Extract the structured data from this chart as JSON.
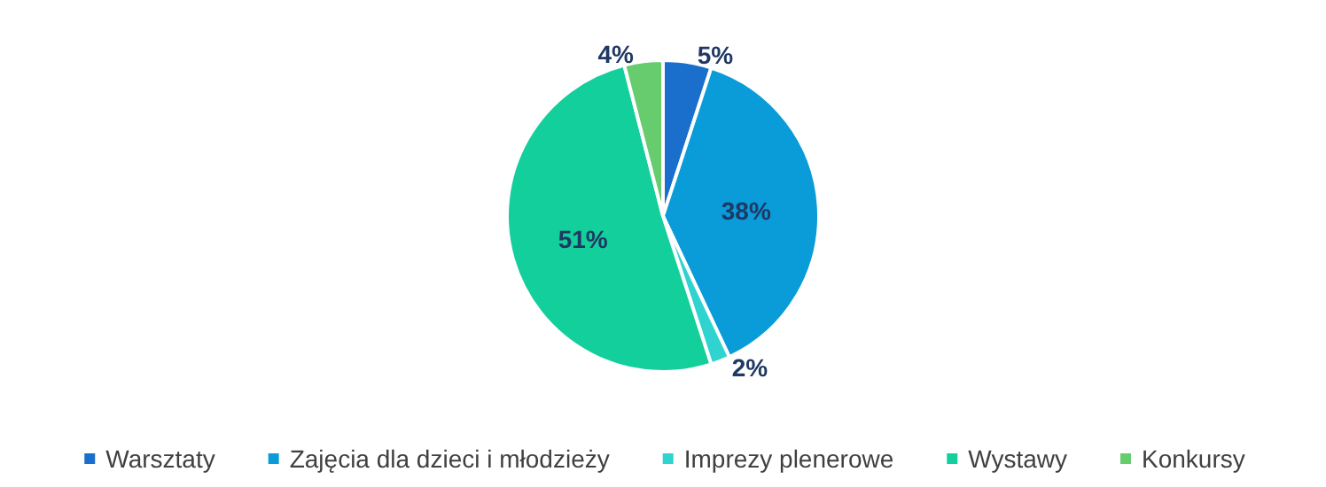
{
  "chart_data": {
    "type": "pie",
    "categories": [
      "Warsztaty",
      "Zajęcia dla dzieci i młodzieży",
      "Imprezy plenerowe",
      "Wystawy",
      "Konkursy"
    ],
    "values": [
      5,
      38,
      2,
      51,
      4
    ],
    "colors": [
      "#1a6fcc",
      "#0a9bd9",
      "#2fd3cf",
      "#13cf9b",
      "#66cc6e"
    ],
    "value_labels": [
      "5%",
      "38%",
      "2%",
      "51%",
      "4%"
    ],
    "legend": "bottom"
  }
}
